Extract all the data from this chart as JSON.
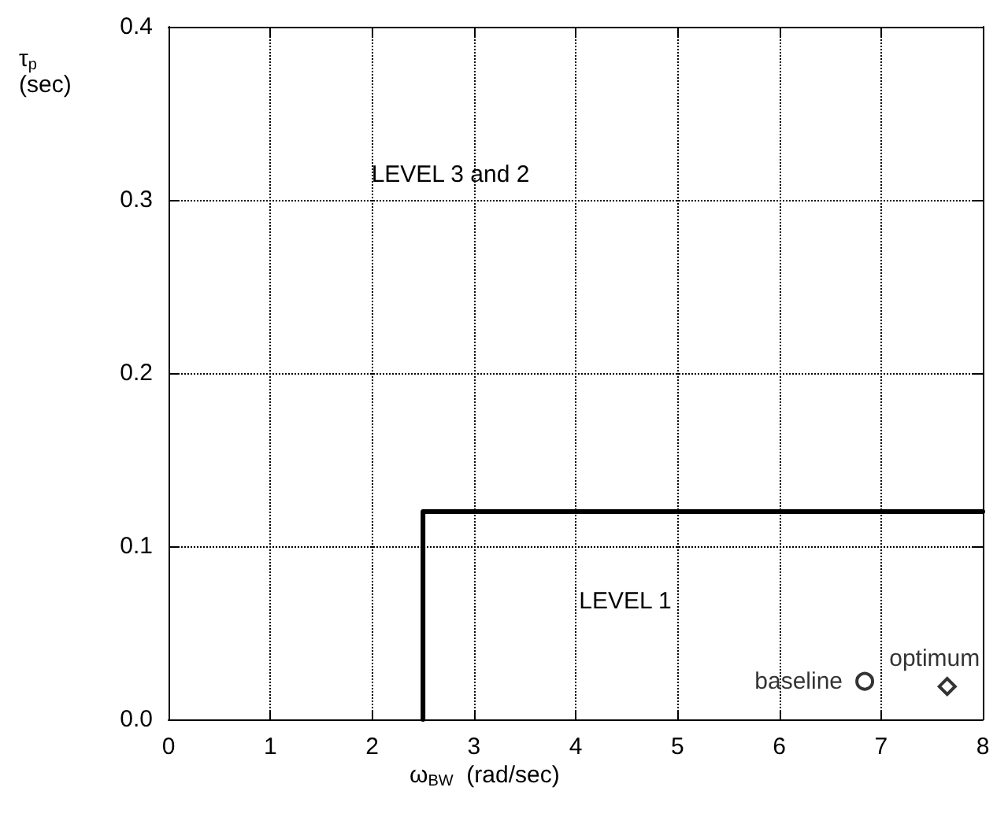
{
  "chart_data": {
    "type": "scatter",
    "xlabel": "ω$_{BW}$  (rad/sec)",
    "ylabel": "τ$_{p}$\n(sec)",
    "xlim": [
      0,
      8
    ],
    "xticks": [
      0,
      1,
      2,
      3,
      4,
      5,
      6,
      7,
      8
    ],
    "ylim": [
      0,
      0.4
    ],
    "yticks": [
      {
        "value": 0,
        "label": "0.0"
      },
      0.1,
      0.2,
      0.3,
      0.4
    ],
    "grid": true,
    "legend": false,
    "series": [
      {
        "type": "line",
        "color": "#000000",
        "x": [
          2.5,
          2.5,
          8
        ],
        "values": [
          0,
          0.12,
          0.12
        ],
        "marker": "none",
        "line_style": "solid"
      },
      {
        "name": "baseline",
        "color": "#000000",
        "x": [
          6.84
        ],
        "values": [
          0.022
        ],
        "marker": "circle"
      },
      {
        "name": "optimum",
        "color": "#000000",
        "x": [
          7.65
        ],
        "values": [
          0.019
        ],
        "marker": "diamond"
      }
    ],
    "annotations": [
      "LEVEL 3 and 2",
      "LEVEL 1"
    ]
  }
}
